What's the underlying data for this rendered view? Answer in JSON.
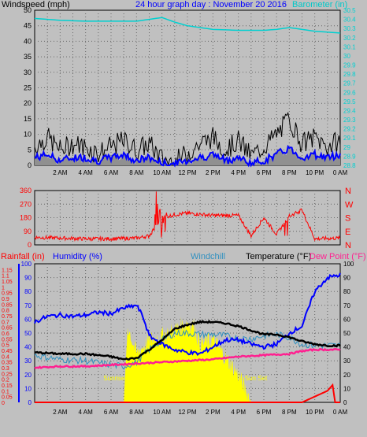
{
  "header": {
    "windspeed_label": "Windspeed (mph)",
    "graph_title": "24 hour graph day : November 20 2016",
    "barometer_label": "Barometer (in)"
  },
  "mid_header": {
    "rainfall_label": "Rainfall (in)",
    "humidity_label": "Humidity (%)",
    "windchill_label": "Windchill",
    "temperature_label": "Temperature (°F)",
    "dewpoint_label": "Dew Point (°F)"
  },
  "annotations": {
    "sunrise": "Sunrise",
    "sunset": "Sun Set"
  },
  "colors": {
    "background": "#c0c0c0",
    "plot_bg": "#000000",
    "plot_bg_grey": "#c0c0c0",
    "windspeed": "#0000ff",
    "gust": "#000000",
    "barometer": "#00d0d0",
    "direction": "#ff0000",
    "temperature": "#000000",
    "humidity": "#0000ff",
    "windchill": "#3090c0",
    "dewpoint": "#ff2090",
    "rain": "#ff0000",
    "solar": "#ffff00",
    "title": "#0000ff"
  },
  "chart_data": [
    {
      "type": "line",
      "panel": "wind-barometer",
      "x_ticks": [
        "2 AM",
        "4 AM",
        "6 AM",
        "8 AM",
        "10 AM",
        "12 PM",
        "2 PM",
        "4 PM",
        "6 PM",
        "8 PM",
        "10 PM",
        "0 AM"
      ],
      "y_left_ticks": [
        "0",
        "5",
        "10",
        "15",
        "20",
        "25",
        "30",
        "35",
        "40",
        "45",
        "50"
      ],
      "y_right_ticks": [
        "28.8",
        "28.9",
        "29",
        "29.1",
        "29.2",
        "29.3",
        "29.4",
        "29.5",
        "29.6",
        "29.7",
        "29.8",
        "29.9",
        "30",
        "30.1",
        "30.2",
        "30.3",
        "30.4",
        "30.5"
      ],
      "ylim_left": [
        0,
        50
      ],
      "ylim_right": [
        28.8,
        30.5
      ],
      "series": [
        {
          "name": "Windspeed (mph)",
          "x_hours": [
            0,
            1,
            2,
            3,
            4,
            5,
            6,
            7,
            8,
            9,
            10,
            11,
            12,
            13,
            14,
            15,
            16,
            17,
            18,
            19,
            20,
            21,
            22,
            23,
            24
          ],
          "values": [
            2,
            3,
            1,
            2,
            2,
            1,
            2,
            3,
            1,
            2,
            0,
            0,
            1,
            2,
            3,
            1,
            2,
            0,
            1,
            3,
            5,
            2,
            3,
            2,
            3
          ]
        },
        {
          "name": "Gust",
          "x_hours": [
            0,
            1,
            2,
            3,
            4,
            5,
            6,
            7,
            8,
            9,
            10,
            11,
            12,
            13,
            14,
            15,
            16,
            17,
            18,
            19,
            20,
            21,
            22,
            23,
            24
          ],
          "values": [
            6,
            9,
            5,
            7,
            6,
            4,
            6,
            8,
            5,
            7,
            2,
            1,
            4,
            7,
            9,
            5,
            8,
            3,
            6,
            10,
            15,
            7,
            9,
            6,
            8
          ]
        },
        {
          "name": "Barometer (in)",
          "x_hours": [
            0,
            2,
            4,
            6,
            8,
            10,
            11,
            12,
            14,
            16,
            18,
            19,
            20,
            22,
            24
          ],
          "values": [
            30.41,
            30.39,
            30.38,
            30.38,
            30.38,
            30.42,
            30.37,
            30.33,
            30.29,
            30.28,
            30.28,
            30.29,
            30.31,
            30.27,
            30.25
          ]
        }
      ]
    },
    {
      "type": "scatter",
      "panel": "wind-direction",
      "y_ticks": [
        "0",
        "90",
        "180",
        "270",
        "360"
      ],
      "direction_labels": [
        "N",
        "W",
        "S",
        "E",
        "N"
      ],
      "ylim": [
        0,
        360
      ],
      "series": [
        {
          "name": "Wind Direction",
          "x_hours": [
            0,
            2,
            4,
            6,
            8,
            9,
            10,
            11,
            12,
            14,
            16,
            17,
            18,
            19,
            20,
            21,
            22,
            24
          ],
          "values": [
            50,
            45,
            40,
            40,
            45,
            60,
            180,
            200,
            210,
            195,
            195,
            60,
            180,
            70,
            190,
            230,
            40,
            45
          ]
        }
      ]
    },
    {
      "type": "line",
      "panel": "temp-humidity-rain",
      "x_ticks": [
        "2 AM",
        "4 AM",
        "6 AM",
        "8 AM",
        "10 AM",
        "12 PM",
        "2 PM",
        "4 PM",
        "6 PM",
        "8 PM",
        "10 PM",
        "0 AM"
      ],
      "y_left_ticks": [
        "0",
        "0.05",
        "0.1",
        "0.15",
        "0.2",
        "0.25",
        "0.3",
        "0.35",
        "0.4",
        "0.45",
        "0.5",
        "0.55",
        "0.6",
        "0.65",
        "0.7",
        "0.75",
        "0.8",
        "0.85",
        "0.9",
        "0.95",
        "1",
        "1.05",
        "1.1",
        "1.15"
      ],
      "y_humidity_ticks": [
        "0",
        "10",
        "20",
        "30",
        "40",
        "50",
        "60",
        "70",
        "80",
        "90",
        "100"
      ],
      "y_right_ticks": [
        "0",
        "10",
        "20",
        "30",
        "40",
        "50",
        "60",
        "70",
        "80",
        "90",
        "100"
      ],
      "ylim_rain": [
        0,
        1.2
      ],
      "ylim_temp": [
        0,
        100
      ],
      "ylim_humidity": [
        0,
        100
      ],
      "series": [
        {
          "name": "Temperature (°F)",
          "x_hours": [
            0,
            2,
            4,
            6,
            7,
            8,
            9,
            10,
            11,
            12,
            13,
            14,
            15,
            16,
            17,
            18,
            19,
            20,
            21,
            22,
            23,
            24
          ],
          "values": [
            36,
            35,
            35,
            33,
            31,
            32,
            38,
            45,
            53,
            56,
            58,
            58,
            57,
            55,
            52,
            49,
            49,
            47,
            44,
            42,
            41,
            41
          ]
        },
        {
          "name": "Humidity (%)",
          "x_hours": [
            0,
            1,
            2,
            3,
            4,
            5,
            6,
            7,
            8,
            8.5,
            9,
            10,
            11,
            12,
            13,
            14,
            15,
            16,
            17,
            18,
            19,
            20,
            21,
            22,
            23,
            24
          ],
          "values": [
            58,
            62,
            63,
            62,
            63,
            65,
            64,
            68,
            70,
            62,
            48,
            42,
            38,
            36,
            35,
            40,
            45,
            45,
            42,
            40,
            42,
            50,
            55,
            80,
            90,
            92
          ]
        },
        {
          "name": "Windchill",
          "x_hours": [
            0,
            2,
            4,
            6,
            7,
            8,
            9,
            10,
            11,
            12,
            13,
            14,
            15,
            16,
            17,
            18,
            19,
            20,
            21,
            22,
            23,
            24
          ],
          "values": [
            34,
            31,
            30,
            27,
            26,
            29,
            38,
            45,
            50,
            50,
            49,
            49,
            48,
            46,
            46,
            48,
            49,
            47,
            42,
            41,
            41,
            41
          ]
        },
        {
          "name": "Dew Point (°F)",
          "x_hours": [
            0,
            2,
            4,
            6,
            8,
            10,
            12,
            14,
            16,
            18,
            20,
            21,
            22,
            23,
            24
          ],
          "values": [
            25,
            26,
            26,
            27,
            28,
            29,
            30,
            31,
            33,
            34,
            35,
            37,
            38,
            38,
            38
          ]
        },
        {
          "name": "Rainfall (in)",
          "x_hours": [
            0,
            21,
            22,
            23,
            23.4,
            23.6
          ],
          "values": [
            0,
            0,
            0.05,
            0.1,
            0.15,
            0
          ]
        },
        {
          "name": "Solar",
          "x_hours": [
            7,
            7.3,
            8,
            9,
            10,
            11,
            12,
            12.5,
            13,
            14,
            15,
            16,
            16.8,
            17
          ],
          "values": [
            0,
            55,
            35,
            45,
            48,
            52,
            58,
            55,
            42,
            45,
            32,
            20,
            5,
            0
          ]
        }
      ]
    }
  ]
}
